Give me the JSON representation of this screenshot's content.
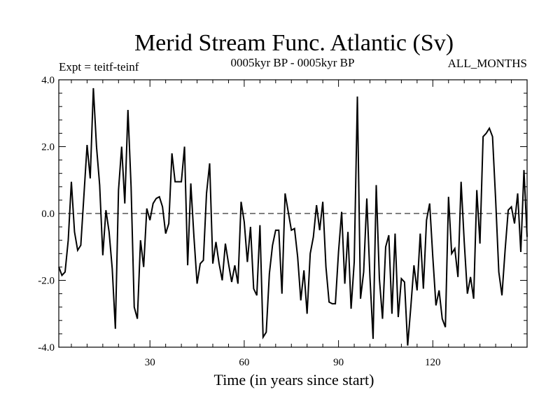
{
  "chart_data": {
    "type": "line",
    "title": "Merid Stream Func. Atlantic (Sv)",
    "subtitle_left": "Expt = teitf-teinf",
    "subtitle_center": "0005kyr BP - 0005kyr BP",
    "subtitle_right": "ALL_MONTHS",
    "xlabel": "Time (in years since start)",
    "ylabel": "",
    "xlim": [
      1,
      150
    ],
    "ylim": [
      -4.0,
      4.0
    ],
    "xticks": [
      30,
      60,
      90,
      120
    ],
    "xtick_labels": [
      "30",
      "60",
      "90",
      "120"
    ],
    "yticks": [
      -4.0,
      -2.0,
      0.0,
      2.0,
      4.0
    ],
    "ytick_labels": [
      "-4.0",
      "-2.0",
      "0.0",
      "2.0",
      "4.0"
    ],
    "zero_line": "dashed",
    "series": [
      {
        "name": "Merid Stream Func. Atlantic",
        "color": "#000000",
        "x": [
          1,
          2,
          3,
          4,
          5,
          6,
          7,
          8,
          9,
          10,
          11,
          12,
          13,
          14,
          15,
          16,
          17,
          18,
          19,
          20,
          21,
          22,
          23,
          24,
          25,
          26,
          27,
          28,
          29,
          30,
          31,
          32,
          33,
          34,
          35,
          36,
          37,
          38,
          39,
          40,
          41,
          42,
          43,
          44,
          45,
          46,
          47,
          48,
          49,
          50,
          51,
          52,
          53,
          54,
          55,
          56,
          57,
          58,
          59,
          60,
          61,
          62,
          63,
          64,
          65,
          66,
          67,
          68,
          69,
          70,
          71,
          72,
          73,
          74,
          75,
          76,
          77,
          78,
          79,
          80,
          81,
          82,
          83,
          84,
          85,
          86,
          87,
          88,
          89,
          90,
          91,
          92,
          93,
          94,
          95,
          96,
          97,
          98,
          99,
          100,
          101,
          102,
          103,
          104,
          105,
          106,
          107,
          108,
          109,
          110,
          111,
          112,
          113,
          114,
          115,
          116,
          117,
          118,
          119,
          120,
          121,
          122,
          123,
          124,
          125,
          126,
          127,
          128,
          129,
          130,
          131,
          132,
          133,
          134,
          135,
          136,
          137,
          138,
          139,
          140,
          141,
          142,
          143,
          144,
          145,
          146,
          147,
          148,
          149,
          150
        ],
        "values": [
          -1.6,
          -1.85,
          -1.75,
          -0.8,
          0.95,
          -0.55,
          -1.1,
          -0.95,
          0.55,
          2.05,
          1.05,
          3.75,
          2.0,
          0.85,
          -1.25,
          0.1,
          -0.55,
          -1.65,
          -3.45,
          0.7,
          2.0,
          0.3,
          3.1,
          0.8,
          -2.8,
          -3.15,
          -0.8,
          -1.6,
          0.15,
          -0.2,
          0.3,
          0.45,
          0.5,
          0.2,
          -0.6,
          -0.3,
          1.8,
          0.95,
          0.95,
          0.95,
          2.0,
          -1.55,
          0.9,
          -0.7,
          -2.1,
          -1.5,
          -1.4,
          0.6,
          1.5,
          -1.5,
          -0.85,
          -1.5,
          -2.0,
          -0.9,
          -1.5,
          -2.05,
          -1.55,
          -2.1,
          0.35,
          -0.25,
          -1.45,
          -0.4,
          -2.25,
          -2.45,
          -0.35,
          -3.7,
          -3.55,
          -1.8,
          -0.95,
          -0.5,
          -0.5,
          -2.4,
          0.6,
          0.05,
          -0.5,
          -0.45,
          -1.3,
          -2.6,
          -1.7,
          -3.0,
          -1.2,
          -0.7,
          0.25,
          -0.5,
          0.35,
          -1.6,
          -2.65,
          -2.7,
          -2.7,
          -1.15,
          0.05,
          -2.1,
          -0.55,
          -2.85,
          -1.45,
          3.5,
          -2.55,
          -1.75,
          0.45,
          -1.9,
          -3.75,
          0.85,
          -1.95,
          -3.15,
          -1.0,
          -0.65,
          -3.0,
          -0.6,
          -3.1,
          -1.95,
          -2.05,
          -3.95,
          -2.8,
          -1.55,
          -2.3,
          -0.6,
          -2.25,
          -0.2,
          0.3,
          -1.3,
          -2.75,
          -2.3,
          -3.15,
          -3.4,
          0.5,
          -1.2,
          -1.05,
          -1.9,
          0.95,
          -0.85,
          -2.4,
          -1.9,
          -2.55,
          0.7,
          -0.9,
          2.3,
          2.4,
          2.55,
          2.3,
          0.4,
          -1.75,
          -2.45,
          -1.1,
          0.1,
          0.2,
          -0.3,
          0.6,
          -1.15,
          1.3,
          -0.7
        ]
      }
    ]
  }
}
